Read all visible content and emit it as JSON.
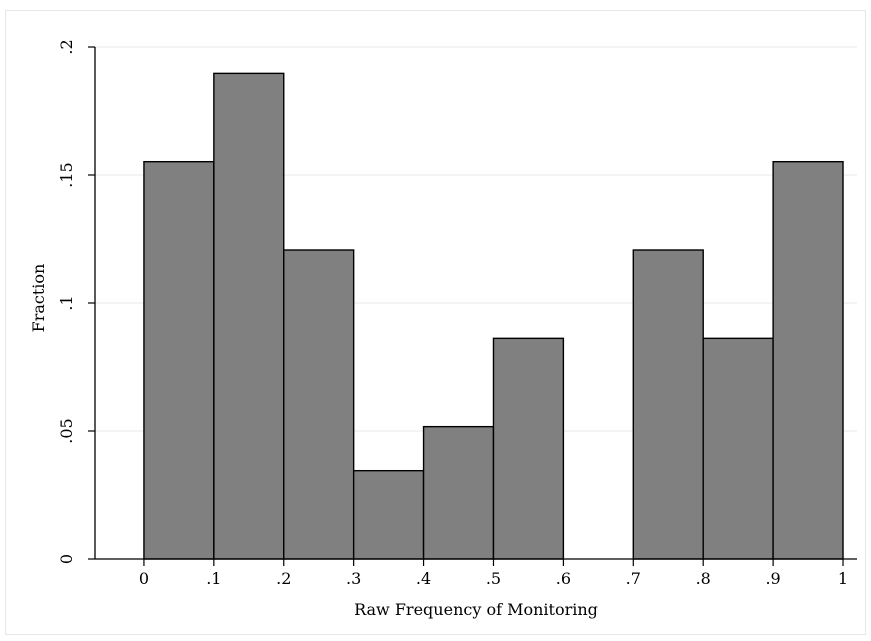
{
  "chart_data": {
    "type": "bar",
    "xlabel": "Raw Frequency of Monitoring",
    "ylabel": "Fraction",
    "bin_edges": [
      0,
      0.1,
      0.2,
      0.3,
      0.4,
      0.5,
      0.6,
      0.7,
      0.8,
      0.9,
      1.0
    ],
    "values": [
      0.1552,
      0.1897,
      0.1207,
      0.0345,
      0.0517,
      0.0862,
      0.0,
      0.1207,
      0.0862,
      0.1552
    ],
    "xlim": [
      -0.07,
      1.02
    ],
    "ylim": [
      0,
      0.2
    ],
    "x_ticks": [
      {
        "value": 0,
        "label": "0"
      },
      {
        "value": 0.1,
        "label": ".1"
      },
      {
        "value": 0.2,
        "label": ".2"
      },
      {
        "value": 0.3,
        "label": ".3"
      },
      {
        "value": 0.4,
        "label": ".4"
      },
      {
        "value": 0.5,
        "label": ".5"
      },
      {
        "value": 0.6,
        "label": ".6"
      },
      {
        "value": 0.7,
        "label": ".7"
      },
      {
        "value": 0.8,
        "label": ".8"
      },
      {
        "value": 0.9,
        "label": ".9"
      },
      {
        "value": 1.0,
        "label": "1"
      }
    ],
    "y_ticks": [
      {
        "value": 0,
        "label": "0"
      },
      {
        "value": 0.05,
        "label": ".05"
      },
      {
        "value": 0.1,
        "label": ".1"
      },
      {
        "value": 0.15,
        "label": ".15"
      },
      {
        "value": 0.2,
        "label": ".2"
      }
    ],
    "grid": true,
    "bar_color": "#808080",
    "edge_color": "#000000",
    "grid_color": "#eaeaea"
  }
}
